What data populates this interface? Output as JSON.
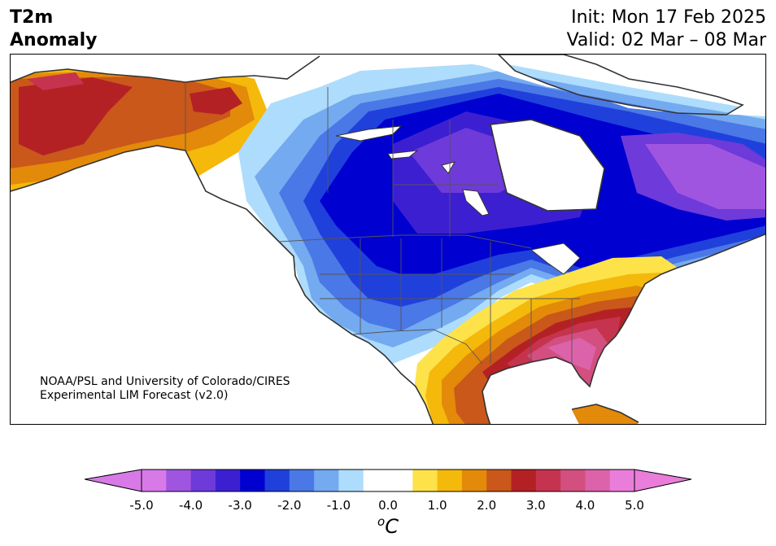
{
  "header": {
    "title_line1": "T2m",
    "title_line2": "Anomaly",
    "init": "Init: Mon 17 Feb 2025",
    "valid": "Valid: 02 Mar – 08 Mar"
  },
  "credit": {
    "line1": "NOAA/PSL and University of Colorado/CIRES",
    "line2": "Experimental LIM Forecast (v2.0)"
  },
  "colorbar": {
    "unit_symbol": "o",
    "unit_letter": "C",
    "ticks": [
      "-5.0",
      "-4.0",
      "-3.0",
      "-2.0",
      "-1.0",
      "0.0",
      "1.0",
      "2.0",
      "3.0",
      "4.0",
      "5.0"
    ],
    "colors": [
      "#d77ae8",
      "#a055e0",
      "#6e3ada",
      "#3d1fd2",
      "#0000d0",
      "#2040dc",
      "#4a78e6",
      "#74aaf0",
      "#aedcfc",
      "#ffffff",
      "#ffffff",
      "#fde24a",
      "#f4b90a",
      "#e38a0a",
      "#c9581a",
      "#b42125",
      "#c6334e",
      "#d24f80",
      "#dc63aa",
      "#e97dd9"
    ],
    "under_color": "#d77ae8",
    "over_color": "#e97dd9"
  },
  "map": {
    "region": "North America",
    "colors": {
      "land_neutral": "#ffffff",
      "coast": "#333333",
      "border": "#555555"
    }
  }
}
